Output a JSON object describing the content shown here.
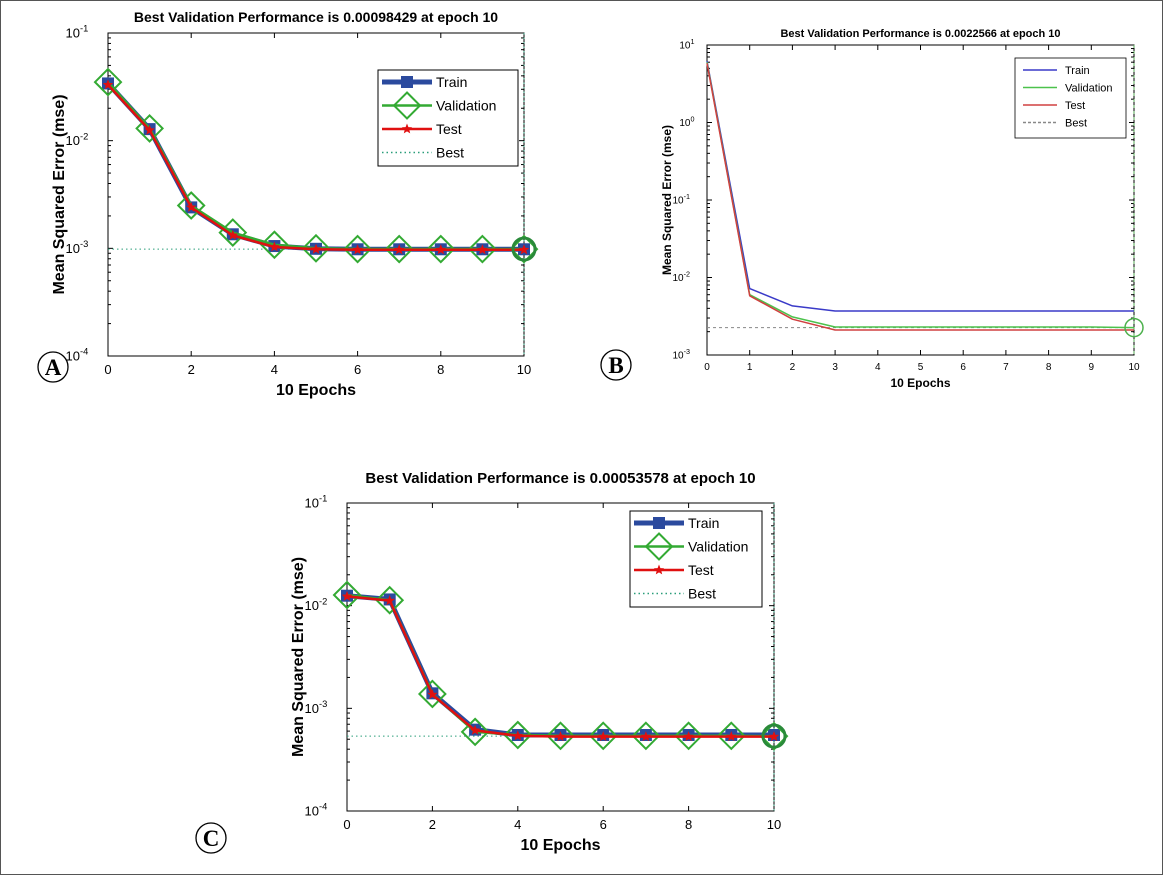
{
  "chart_data": [
    {
      "panel": "A",
      "type": "line",
      "title": "Best Validation Performance is 0.00098429 at epoch 10",
      "xlabel": "10 Epochs",
      "ylabel": "Mean Squared Error  (mse)",
      "yscale": "log",
      "xlim": [
        0,
        10
      ],
      "ylim": [
        0.0001,
        0.1
      ],
      "xticks": [
        "0",
        "2",
        "4",
        "6",
        "8",
        "10"
      ],
      "yticks": [
        {
          "base": "10",
          "exp": "-1"
        },
        {
          "base": "10",
          "exp": "-2"
        },
        {
          "base": "10",
          "exp": "-3"
        },
        {
          "base": "10",
          "exp": "-4"
        }
      ],
      "grid": false,
      "legend_position": "top-right",
      "x": [
        0,
        1,
        2,
        3,
        4,
        5,
        6,
        7,
        8,
        9,
        10
      ],
      "series": [
        {
          "name": "Train",
          "color": "#2b4a9e",
          "values": [
            0.034,
            0.0128,
            0.0024,
            0.00135,
            0.00105,
            0.00099,
            0.00098,
            0.00098,
            0.00098,
            0.00098,
            0.00098
          ]
        },
        {
          "name": "Validation",
          "color": "#33aa33",
          "values": [
            0.035,
            0.013,
            0.0025,
            0.0014,
            0.00108,
            0.001,
            0.000985,
            0.000985,
            0.000985,
            0.000985,
            0.00098429
          ]
        },
        {
          "name": "Test",
          "color": "#e01010",
          "values": [
            0.033,
            0.0125,
            0.0024,
            0.00132,
            0.00103,
            0.00098,
            0.00097,
            0.00097,
            0.00097,
            0.00097,
            0.00097
          ]
        }
      ],
      "best": {
        "name": "Best",
        "epoch": 10,
        "value": 0.00098429,
        "color": "#2a9e7a"
      }
    },
    {
      "panel": "B",
      "type": "line",
      "title": "Best Validation Performance is 0.0022566 at epoch 10",
      "xlabel": "10 Epochs",
      "ylabel": "Mean Squared Error  (mse)",
      "yscale": "log",
      "xlim": [
        0,
        10
      ],
      "ylim": [
        0.001,
        10
      ],
      "xticks": [
        "0",
        "1",
        "2",
        "3",
        "4",
        "5",
        "6",
        "7",
        "8",
        "9",
        "10"
      ],
      "yticks": [
        {
          "base": "10",
          "exp": "1"
        },
        {
          "base": "10",
          "exp": "0"
        },
        {
          "base": "10",
          "exp": "-1"
        },
        {
          "base": "10",
          "exp": "-2"
        },
        {
          "base": "10",
          "exp": "-3"
        }
      ],
      "grid": false,
      "legend_position": "top-right",
      "x": [
        0,
        1,
        2,
        3,
        4,
        5,
        6,
        7,
        8,
        9,
        10
      ],
      "series": [
        {
          "name": "Train",
          "color": "#3a3ac8",
          "values": [
            6.2,
            0.0072,
            0.0043,
            0.0037,
            0.0037,
            0.0037,
            0.0037,
            0.0037,
            0.0037,
            0.0037,
            0.0037
          ]
        },
        {
          "name": "Validation",
          "color": "#4cc24c",
          "values": [
            6.0,
            0.006,
            0.0031,
            0.0023,
            0.0023,
            0.0023,
            0.0023,
            0.0023,
            0.0023,
            0.0023,
            0.0022566
          ]
        },
        {
          "name": "Test",
          "color": "#d04040",
          "values": [
            5.8,
            0.0058,
            0.0029,
            0.0021,
            0.0021,
            0.0021,
            0.0021,
            0.0021,
            0.0021,
            0.0021,
            0.0021
          ]
        }
      ],
      "best": {
        "name": "Best",
        "epoch": 10,
        "value": 0.0022566,
        "color": "#888888"
      }
    },
    {
      "panel": "C",
      "type": "line",
      "title": "Best Validation Performance is 0.00053578 at epoch 10",
      "xlabel": "10 Epochs",
      "ylabel": "Mean Squared Error  (mse)",
      "yscale": "log",
      "xlim": [
        0,
        10
      ],
      "ylim": [
        0.0001,
        0.1
      ],
      "xticks": [
        "0",
        "2",
        "4",
        "6",
        "8",
        "10"
      ],
      "yticks": [
        {
          "base": "10",
          "exp": "-1"
        },
        {
          "base": "10",
          "exp": "-2"
        },
        {
          "base": "10",
          "exp": "-3"
        },
        {
          "base": "10",
          "exp": "-4"
        }
      ],
      "grid": false,
      "legend_position": "top-right",
      "x": [
        0,
        1,
        2,
        3,
        4,
        5,
        6,
        7,
        8,
        9,
        10
      ],
      "series": [
        {
          "name": "Train",
          "color": "#2b4a9e",
          "values": [
            0.0125,
            0.0115,
            0.0014,
            0.00062,
            0.00055,
            0.00055,
            0.00055,
            0.00055,
            0.00055,
            0.00055,
            0.00055
          ]
        },
        {
          "name": "Validation",
          "color": "#33aa33",
          "values": [
            0.0127,
            0.0113,
            0.00138,
            0.00059,
            0.00055,
            0.00054,
            0.00054,
            0.00054,
            0.00054,
            0.00054,
            0.00053578
          ]
        },
        {
          "name": "Test",
          "color": "#e01010",
          "values": [
            0.0123,
            0.0112,
            0.00136,
            0.00061,
            0.00054,
            0.00053,
            0.00053,
            0.00053,
            0.00053,
            0.00053,
            0.00053
          ]
        }
      ],
      "best": {
        "name": "Best",
        "epoch": 10,
        "value": 0.00053578,
        "color": "#2a9e7a"
      }
    }
  ]
}
